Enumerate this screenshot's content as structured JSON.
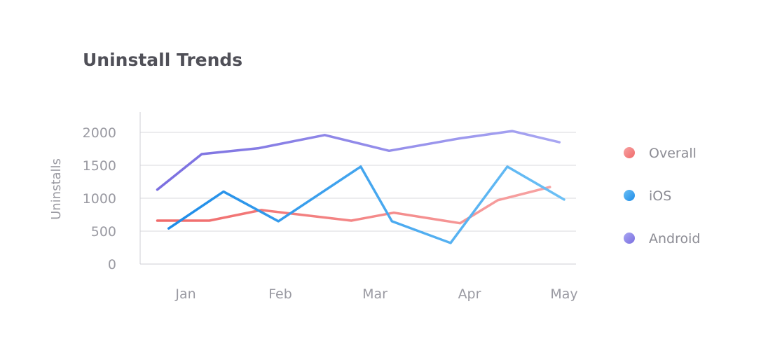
{
  "chart_data": {
    "type": "line",
    "title": "Uninstall Trends",
    "xlabel": "",
    "ylabel": "Uninstalls",
    "categories": [
      "Jan",
      "Feb",
      "Mar",
      "Apr",
      "May"
    ],
    "yticks": [
      0,
      500,
      1000,
      1500,
      2000
    ],
    "ylim": [
      0,
      2000
    ],
    "grid": true,
    "legend_position": "right",
    "series": [
      {
        "name": "Overall",
        "color_start": "#f06a6a",
        "color_end": "#f7a3a3",
        "x": [
          -0.3,
          0.25,
          0.8,
          1.75,
          2.2,
          2.9,
          3.3,
          3.85
        ],
        "values": [
          660,
          660,
          820,
          660,
          780,
          620,
          970,
          1170
        ]
      },
      {
        "name": "iOS",
        "color_start": "#1e8ce8",
        "color_end": "#6cc0f5",
        "x": [
          -0.18,
          0.4,
          0.98,
          1.85,
          2.18,
          2.8,
          3.4,
          4.0
        ],
        "values": [
          540,
          1100,
          650,
          1480,
          650,
          320,
          1480,
          980
        ]
      },
      {
        "name": "Android",
        "color_start": "#7b6fe0",
        "color_end": "#a8a6f2",
        "x": [
          -0.3,
          0.17,
          0.77,
          1.47,
          2.15,
          2.9,
          3.45,
          3.95
        ],
        "values": [
          1130,
          1670,
          1760,
          1960,
          1720,
          1910,
          2020,
          1850
        ]
      }
    ]
  }
}
